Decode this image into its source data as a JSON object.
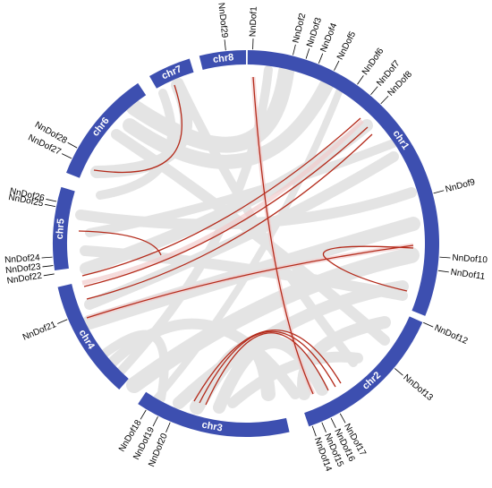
{
  "colors": {
    "chromosome": "#3d4fb0",
    "background_link": "#e3e3e3",
    "highlight_link": "#b42a1a",
    "highlight_shadow": "#f2cccc"
  },
  "chromosomes": [
    {
      "id": "chr1",
      "label": "chr1"
    },
    {
      "id": "chr2",
      "label": "chr2"
    },
    {
      "id": "chr3",
      "label": "chr3"
    },
    {
      "id": "chr4",
      "label": "chr4"
    },
    {
      "id": "chr5",
      "label": "chr5"
    },
    {
      "id": "chr6",
      "label": "chr6"
    },
    {
      "id": "chr7",
      "label": "chr7"
    },
    {
      "id": "chr8",
      "label": "chr8"
    }
  ],
  "genes": [
    {
      "label": "NnDof1"
    },
    {
      "label": "NnDof2"
    },
    {
      "label": "NnDof3"
    },
    {
      "label": "NnDof4"
    },
    {
      "label": "NnDof5"
    },
    {
      "label": "NnDof6"
    },
    {
      "label": "NnDof7"
    },
    {
      "label": "NnDof8"
    },
    {
      "label": "NnDof9"
    },
    {
      "label": "NnDof10"
    },
    {
      "label": "NnDof11"
    },
    {
      "label": "NnDof12"
    },
    {
      "label": "NnDof13"
    },
    {
      "label": "NnDof14"
    },
    {
      "label": "NnDof15"
    },
    {
      "label": "NnDof16"
    },
    {
      "label": "NnDof17"
    },
    {
      "label": "NnDof18"
    },
    {
      "label": "NnDof19"
    },
    {
      "label": "NnDof20"
    },
    {
      "label": "NnDof21"
    },
    {
      "label": "NnDof22"
    },
    {
      "label": "NnDof23"
    },
    {
      "label": "NnDof24"
    },
    {
      "label": "NnDof25"
    },
    {
      "label": "NnDof26"
    },
    {
      "label": "NnDof27"
    },
    {
      "label": "NnDof28"
    },
    {
      "label": "NnDof29"
    }
  ]
}
